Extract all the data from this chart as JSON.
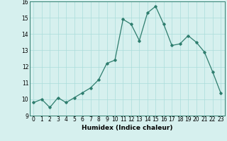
{
  "x": [
    0,
    1,
    2,
    3,
    4,
    5,
    6,
    7,
    8,
    9,
    10,
    11,
    12,
    13,
    14,
    15,
    16,
    17,
    18,
    19,
    20,
    21,
    22,
    23
  ],
  "y": [
    9.8,
    10.0,
    9.5,
    10.1,
    9.8,
    10.1,
    10.4,
    10.7,
    11.2,
    12.2,
    12.4,
    14.9,
    14.6,
    13.6,
    15.3,
    15.7,
    14.6,
    13.3,
    13.4,
    13.9,
    13.5,
    12.9,
    11.7,
    10.4
  ],
  "title": "",
  "xlabel": "Humidex (Indice chaleur)",
  "ylabel": "",
  "xlim": [
    -0.5,
    23.5
  ],
  "ylim": [
    9,
    16
  ],
  "yticks": [
    9,
    10,
    11,
    12,
    13,
    14,
    15,
    16
  ],
  "xticks": [
    0,
    1,
    2,
    3,
    4,
    5,
    6,
    7,
    8,
    9,
    10,
    11,
    12,
    13,
    14,
    15,
    16,
    17,
    18,
    19,
    20,
    21,
    22,
    23
  ],
  "line_color": "#2e7d6e",
  "marker": "D",
  "marker_size": 1.8,
  "bg_color": "#d6f0ee",
  "grid_color": "#aaddda",
  "label_fontsize": 6.5,
  "tick_fontsize": 5.5
}
